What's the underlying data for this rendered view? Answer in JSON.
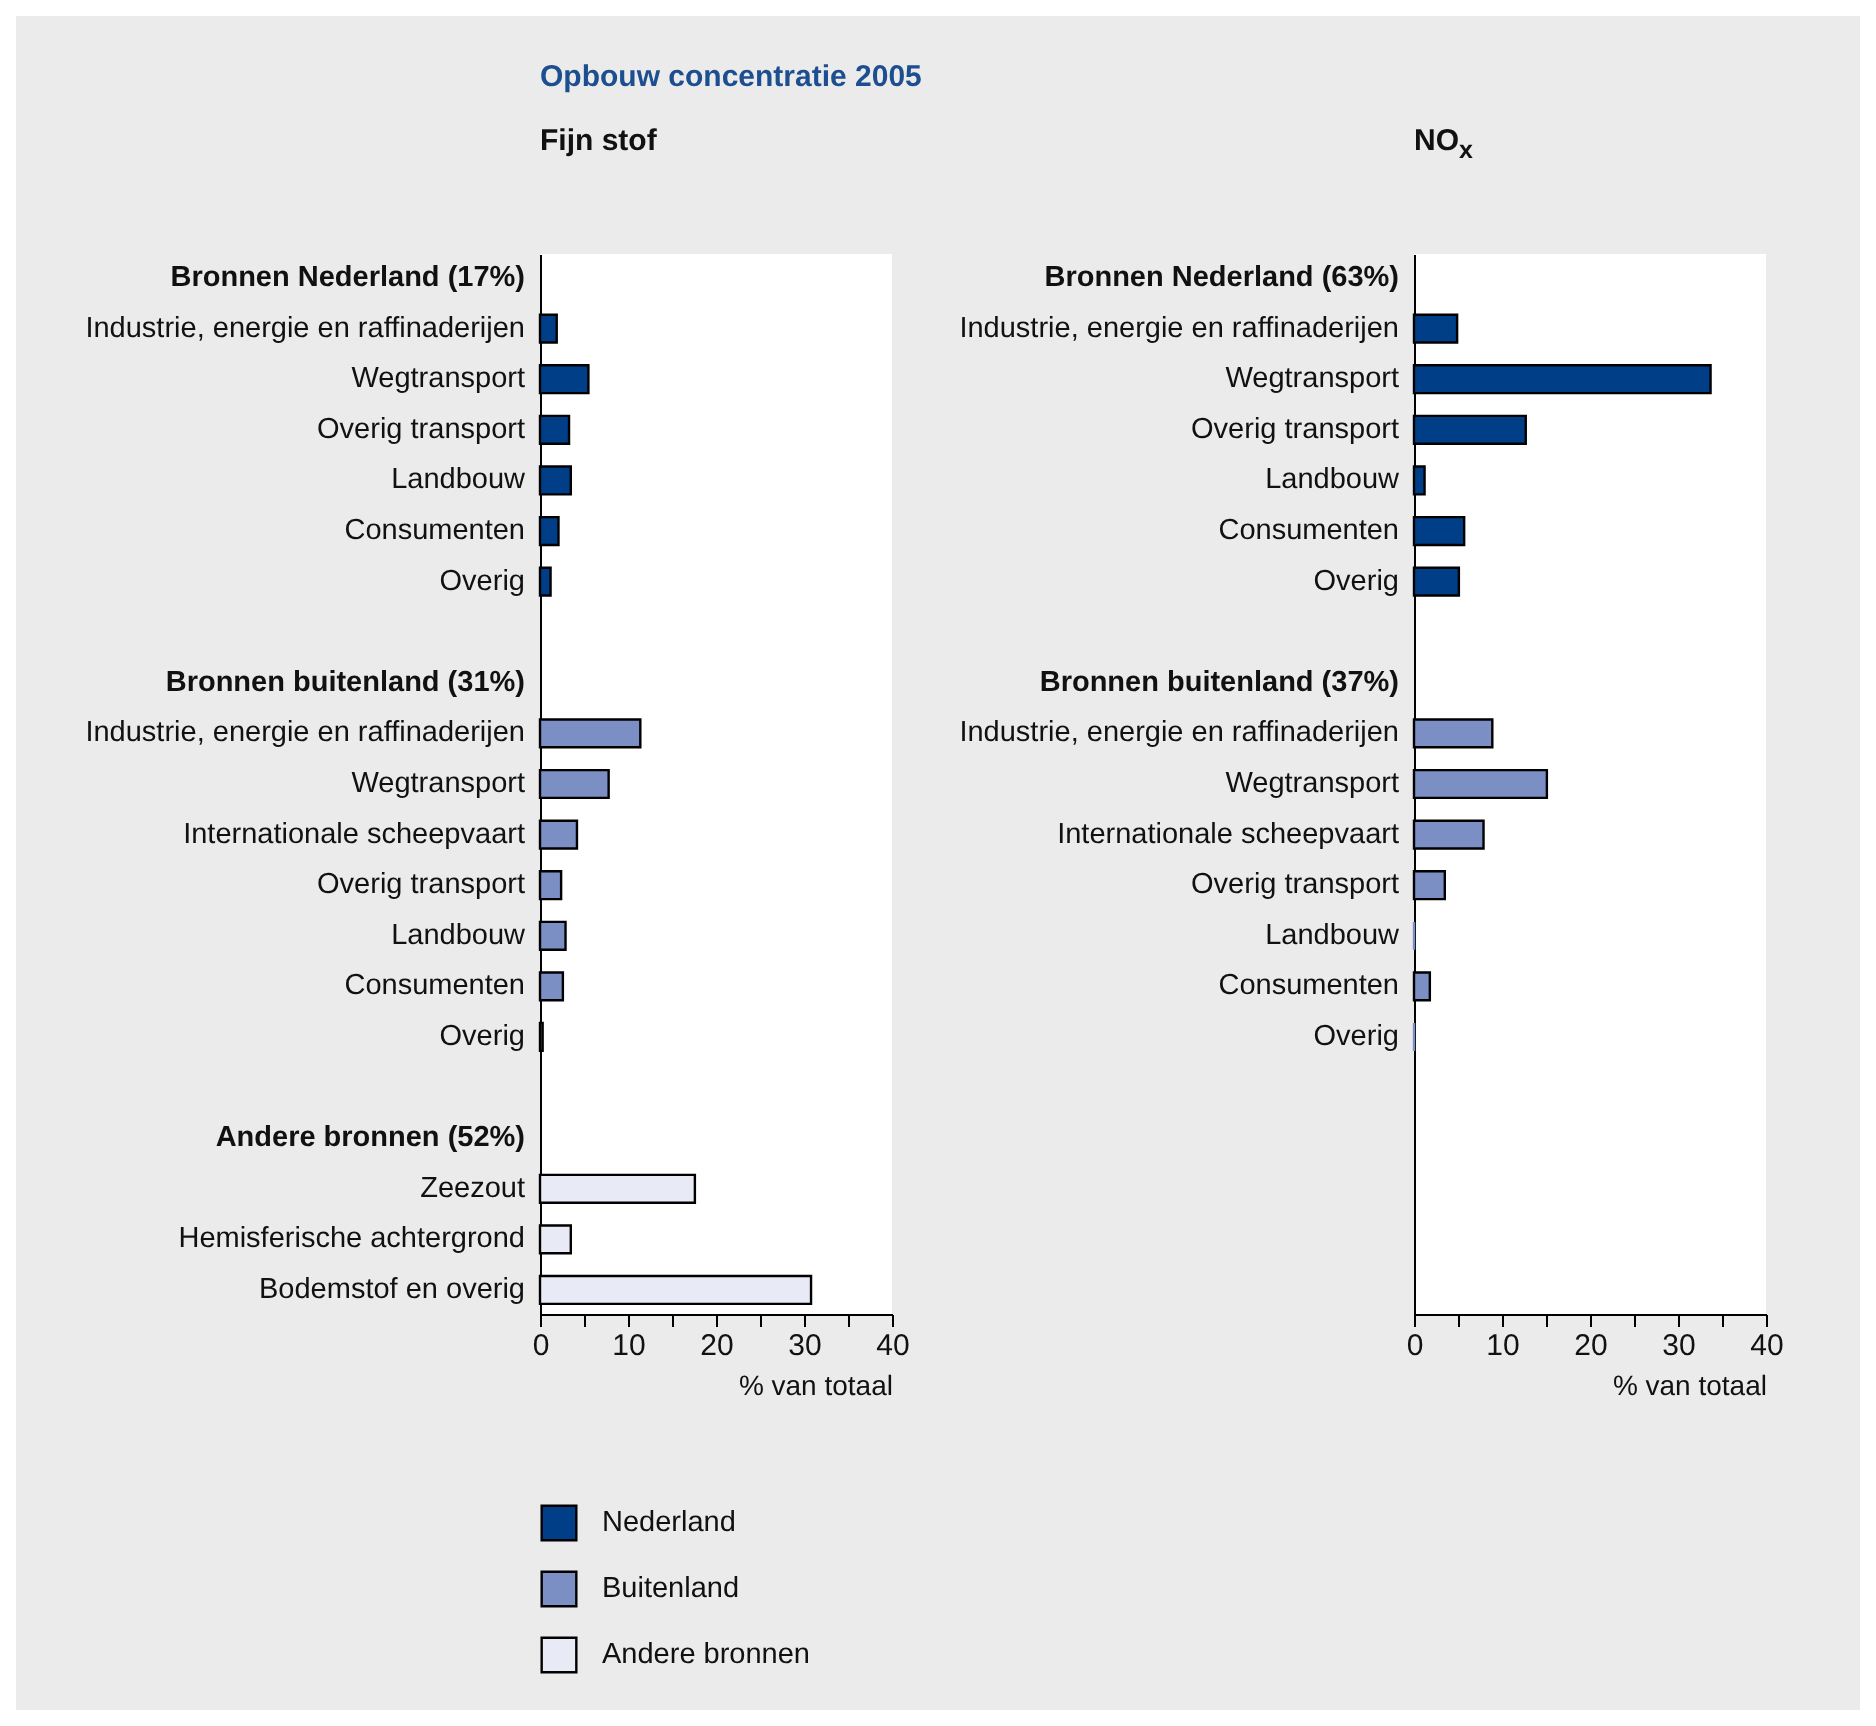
{
  "chart_data": [
    {
      "type": "bar",
      "orientation": "horizontal",
      "title": "Opbouw concentratie 2005",
      "subtitle": "Fijn stof",
      "xlabel": "% van totaal",
      "legend": "bottom left",
      "categories": [
        "Bronnen Nederland (17%)",
        "Industrie, energie en raffinaderijen",
        "Wegtransport",
        "Overig transport",
        "Landbouw",
        "Consumenten",
        "Overig",
        null,
        "Bronnen buitenland (31%)",
        "Industrie, energie en raffinaderijen",
        "Wegtransport",
        "Internationale scheepvaart",
        "Overig transport",
        "Landbouw",
        "Consumenten",
        "Overig",
        null,
        "Andere bronnen (52%)",
        "Zeezout",
        "Hemisferische achtergrond",
        "Bodemstof en overig"
      ],
      "series": [
        {
          "name": "Nederland",
          "color": "#003f87",
          "values": [
            null,
            1.9,
            5.5,
            3.3,
            3.5,
            2.1,
            1.2,
            null,
            null,
            null,
            null,
            null,
            null,
            null,
            null,
            null,
            null,
            null,
            null,
            null,
            null
          ]
        },
        {
          "name": "Buitenland",
          "color": "#7b8fc4",
          "values": [
            null,
            null,
            null,
            null,
            null,
            null,
            null,
            null,
            null,
            11.4,
            7.8,
            4.2,
            2.4,
            2.9,
            2.6,
            0.3,
            null,
            null,
            null,
            null,
            null
          ]
        },
        {
          "name": "Andere bronnen",
          "color": "#e8ebf5",
          "values": [
            null,
            null,
            null,
            null,
            null,
            null,
            null,
            null,
            null,
            null,
            null,
            null,
            null,
            null,
            null,
            null,
            null,
            null,
            17.6,
            3.5,
            30.8
          ]
        }
      ],
      "xlim": [
        0,
        40
      ],
      "xticks": [
        0,
        {
          "value": 5,
          "label": null
        },
        10,
        {
          "value": 15,
          "label": null
        },
        20,
        {
          "value": 25,
          "label": null
        },
        30,
        {
          "value": 35,
          "label": null
        },
        40
      ]
    },
    {
      "type": "bar",
      "orientation": "horizontal",
      "title": "NO$_{x}$",
      "xlabel": "% van totaal",
      "categories": [
        "Bronnen Nederland (63%)",
        "Industrie, energie en raffinaderijen",
        "Wegtransport",
        "Overig transport",
        "Landbouw",
        "Consumenten",
        "Overig",
        null,
        "Bronnen buitenland (37%)",
        "Industrie, energie en raffinaderijen",
        "Wegtransport",
        "Internationale scheepvaart",
        "Overig transport",
        "Landbouw",
        "Consumenten",
        "Overig",
        null,
        null,
        null,
        null,
        null
      ],
      "series": [
        {
          "color": "#003f87",
          "values": [
            null,
            4.9,
            33.7,
            12.7,
            1.2,
            5.7,
            5.1,
            null,
            null,
            null,
            null,
            null,
            null,
            null,
            null,
            null,
            null,
            null,
            null,
            null,
            null
          ]
        },
        {
          "color": "#7b8fc4",
          "values": [
            null,
            null,
            null,
            null,
            null,
            null,
            null,
            null,
            null,
            8.9,
            15.1,
            7.9,
            3.5,
            0,
            1.8,
            0,
            null,
            null,
            null,
            null,
            null
          ]
        }
      ],
      "xlim": [
        0,
        40
      ],
      "xticks": [
        0,
        {
          "value": 5,
          "label": null
        },
        10,
        {
          "value": 15,
          "label": null
        },
        20,
        {
          "value": 25,
          "label": null
        },
        30,
        {
          "value": 35,
          "label": null
        },
        40
      ]
    }
  ]
}
